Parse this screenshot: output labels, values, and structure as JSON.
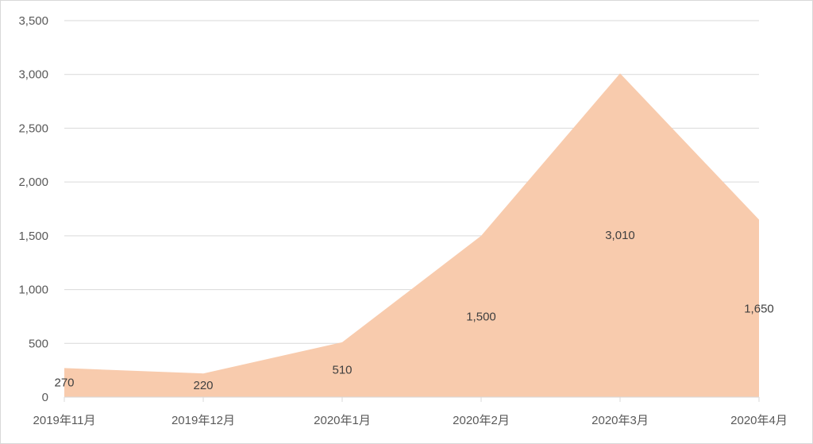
{
  "chart_data": {
    "type": "area",
    "categories": [
      "2019年11月",
      "2019年12月",
      "2020年1月",
      "2020年2月",
      "2020年3月",
      "2020年4月"
    ],
    "series": [
      {
        "values": [
          270,
          220,
          510,
          1500,
          3010,
          1650
        ],
        "color": "#f8cbad"
      }
    ],
    "data_labels": [
      "270",
      "220",
      "510",
      "1,500",
      "3,010",
      "1,650"
    ],
    "y_ticks": [
      "0",
      "500",
      "1,000",
      "1,500",
      "2,000",
      "2,500",
      "3,000",
      "3,500"
    ],
    "ylim": [
      0,
      3500
    ],
    "grid": true,
    "gridline_color": "#d9d9d9",
    "title": "",
    "xlabel": "",
    "ylabel": ""
  }
}
